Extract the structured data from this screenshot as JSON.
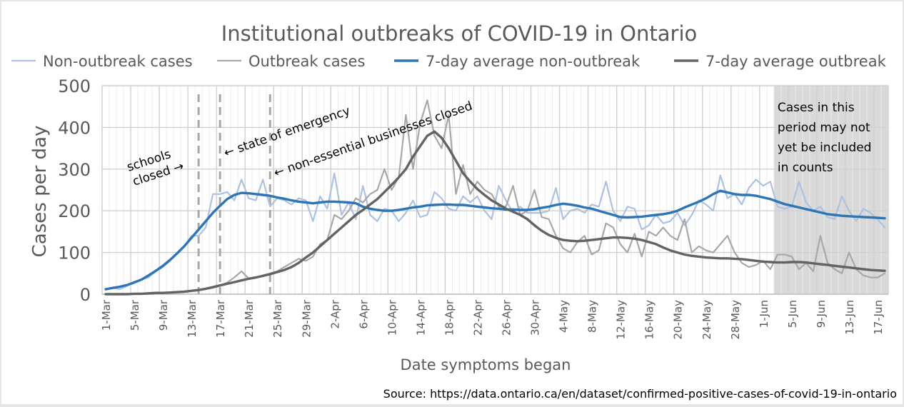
{
  "chart_data": {
    "type": "line",
    "title": "Institutional outbreaks of COVID-19 in Ontario",
    "xlabel": "Date symptoms began",
    "ylabel": "Cases per day",
    "ylim": [
      0,
      500
    ],
    "yticks": [
      0,
      100,
      200,
      300,
      400,
      500
    ],
    "grid": true,
    "legend_position": "top",
    "start_date": "1-Mar",
    "x_tick_labels": [
      "1-Mar",
      "5-Mar",
      "9-Mar",
      "13-Mar",
      "17-Mar",
      "21-Mar",
      "25-Mar",
      "29-Mar",
      "2-Apr",
      "6-Apr",
      "10-Apr",
      "14-Apr",
      "18-Apr",
      "22-Apr",
      "26-Apr",
      "30-Apr",
      "4-May",
      "8-May",
      "12-May",
      "16-May",
      "20-May",
      "24-May",
      "28-May",
      "1-Jun",
      "5-Jun",
      "9-Jun",
      "13-Jun",
      "17-Jun"
    ],
    "x_tick_every_days": 4,
    "series": [
      {
        "name": "Non-outbreak cases",
        "color": "#adc1e0",
        "values": [
          10,
          15,
          12,
          20,
          30,
          35,
          40,
          55,
          65,
          80,
          100,
          115,
          140,
          140,
          160,
          240,
          240,
          245,
          225,
          275,
          230,
          225,
          275,
          210,
          230,
          225,
          215,
          230,
          225,
          175,
          235,
          205,
          290,
          190,
          220,
          180,
          260,
          190,
          175,
          205,
          200,
          175,
          195,
          225,
          185,
          190,
          245,
          230,
          205,
          200,
          235,
          220,
          235,
          200,
          180,
          260,
          225,
          195,
          210,
          195,
          195,
          195,
          200,
          255,
          180,
          200,
          205,
          195,
          215,
          210,
          270,
          200,
          175,
          210,
          205,
          155,
          165,
          190,
          170,
          175,
          195,
          165,
          190,
          225,
          215,
          200,
          285,
          230,
          240,
          215,
          255,
          275,
          260,
          270,
          210,
          205,
          210,
          270,
          220,
          200,
          210,
          185,
          180,
          235,
          200,
          175,
          205,
          195,
          180,
          160
        ]
      },
      {
        "name": "Outbreak cases",
        "color": "#a8a8a8",
        "values": [
          0,
          0,
          0,
          0,
          0,
          0,
          1,
          2,
          3,
          5,
          4,
          6,
          8,
          10,
          12,
          15,
          20,
          28,
          40,
          55,
          38,
          40,
          45,
          50,
          55,
          65,
          75,
          85,
          80,
          90,
          120,
          130,
          190,
          180,
          200,
          230,
          220,
          240,
          250,
          300,
          250,
          280,
          430,
          300,
          410,
          465,
          380,
          350,
          430,
          240,
          310,
          240,
          270,
          250,
          240,
          210,
          210,
          260,
          190,
          200,
          250,
          185,
          180,
          140,
          110,
          100,
          125,
          140,
          95,
          105,
          170,
          160,
          120,
          100,
          145,
          90,
          150,
          140,
          160,
          140,
          130,
          180,
          100,
          115,
          105,
          100,
          120,
          140,
          100,
          75,
          65,
          70,
          80,
          60,
          95,
          95,
          90,
          60,
          75,
          55,
          140,
          75,
          60,
          50,
          100,
          60,
          45,
          40,
          40,
          50
        ]
      },
      {
        "name": "7-day average non-outbreak",
        "color": "#2e75b6",
        "values": [
          12,
          15,
          18,
          22,
          28,
          35,
          45,
          56,
          68,
          82,
          98,
          115,
          135,
          155,
          175,
          195,
          212,
          228,
          238,
          243,
          242,
          240,
          238,
          236,
          232,
          229,
          225,
          222,
          220,
          218,
          220,
          222,
          222,
          221,
          220,
          218,
          210,
          205,
          202,
          200,
          200,
          202,
          205,
          208,
          210,
          213,
          214,
          215,
          215,
          214,
          214,
          212,
          210,
          208,
          206,
          205,
          203,
          203,
          202,
          202,
          204,
          207,
          210,
          214,
          217,
          215,
          212,
          208,
          205,
          200,
          195,
          190,
          185,
          184,
          185,
          186,
          188,
          190,
          192,
          195,
          200,
          208,
          215,
          222,
          230,
          240,
          248,
          244,
          240,
          238,
          238,
          236,
          232,
          228,
          222,
          216,
          212,
          208,
          204,
          200,
          196,
          192,
          190,
          188,
          187,
          186,
          185,
          184,
          183,
          182
        ]
      },
      {
        "name": "7-day average outbreak",
        "color": "#636363",
        "values": [
          0,
          0,
          0,
          0,
          1,
          1,
          2,
          3,
          3,
          4,
          5,
          6,
          8,
          10,
          13,
          17,
          21,
          25,
          29,
          33,
          37,
          40,
          44,
          48,
          53,
          58,
          65,
          75,
          88,
          100,
          115,
          130,
          145,
          160,
          175,
          190,
          202,
          215,
          228,
          245,
          262,
          280,
          300,
          330,
          355,
          380,
          390,
          375,
          350,
          320,
          290,
          270,
          252,
          238,
          225,
          215,
          205,
          198,
          190,
          180,
          165,
          152,
          142,
          135,
          130,
          128,
          127,
          128,
          130,
          132,
          134,
          136,
          136,
          135,
          133,
          130,
          125,
          120,
          112,
          105,
          100,
          95,
          92,
          90,
          88,
          87,
          86,
          86,
          85,
          84,
          82,
          80,
          78,
          77,
          76,
          76,
          77,
          77,
          76,
          74,
          72,
          70,
          68,
          66,
          64,
          62,
          60,
          58,
          57,
          56
        ]
      }
    ],
    "vertical_markers": [
      {
        "day_index": 13,
        "label": "schools closed →"
      },
      {
        "day_index": 16,
        "label": "← state of emergency"
      },
      {
        "day_index": 23,
        "label": "← non-essential businesses closed"
      }
    ],
    "shaded_region": {
      "from_day_index": 94,
      "to_day_index": 109,
      "label_lines": [
        "Cases in this",
        "period may not",
        "yet be included",
        "in counts"
      ]
    },
    "annotations": {
      "schools_line1": "schools",
      "schools_line2": "closed →",
      "emergency": "← state of emergency",
      "nonessential": "← non-essential businesses closed"
    },
    "source": "Source: https://data.ontario.ca/en/dataset/confirmed-positive-cases-of-covid-19-in-ontario"
  }
}
